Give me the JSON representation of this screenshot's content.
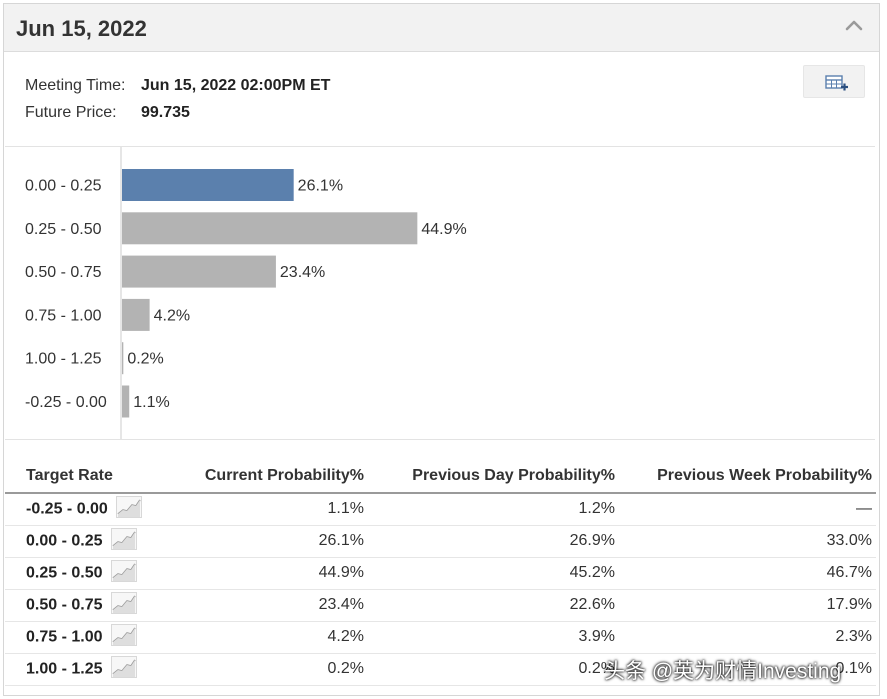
{
  "header": {
    "title": "Jun 15, 2022"
  },
  "meeting": {
    "time_label": "Meeting Time:",
    "time_value": "Jun 15, 2022 02:00PM ET",
    "price_label": "Future Price:",
    "price_value": "99.735"
  },
  "icons": {
    "collapse": "chevron-up-icon",
    "export": "table-add-icon",
    "row": "sparkline-chart-icon"
  },
  "colors": {
    "highlight_bar": "#5b80ad",
    "bar": "#b3b3b3",
    "axis": "#cccccc"
  },
  "chart_data": {
    "type": "bar",
    "orientation": "horizontal",
    "categories": [
      "0.00 - 0.25",
      "0.25 - 0.50",
      "0.50 - 0.75",
      "0.75 - 1.00",
      "1.00 - 1.25",
      "-0.25 - 0.00"
    ],
    "values": [
      26.1,
      44.9,
      23.4,
      4.2,
      0.2,
      1.1
    ],
    "value_labels": [
      "26.1%",
      "44.9%",
      "23.4%",
      "4.2%",
      "0.2%",
      "1.1%"
    ],
    "highlight_index": 0,
    "xlim": [
      0,
      45
    ],
    "grid": false
  },
  "table": {
    "headers": [
      "Target Rate",
      "Current Probability%",
      "Previous Day Probability%",
      "Previous Week Probability%"
    ],
    "rows": [
      {
        "rate": "-0.25 - 0.00",
        "current": "1.1%",
        "prev_day": "1.2%",
        "prev_week": "—"
      },
      {
        "rate": "0.00 - 0.25",
        "current": "26.1%",
        "prev_day": "26.9%",
        "prev_week": "33.0%"
      },
      {
        "rate": "0.25 - 0.50",
        "current": "44.9%",
        "prev_day": "45.2%",
        "prev_week": "46.7%"
      },
      {
        "rate": "0.50 - 0.75",
        "current": "23.4%",
        "prev_day": "22.6%",
        "prev_week": "17.9%"
      },
      {
        "rate": "0.75 - 1.00",
        "current": "4.2%",
        "prev_day": "3.9%",
        "prev_week": "2.3%"
      },
      {
        "rate": "1.00 - 1.25",
        "current": "0.2%",
        "prev_day": "0.2%",
        "prev_week": "0.1%"
      }
    ]
  },
  "watermark": "头条 @英为财情Investing"
}
